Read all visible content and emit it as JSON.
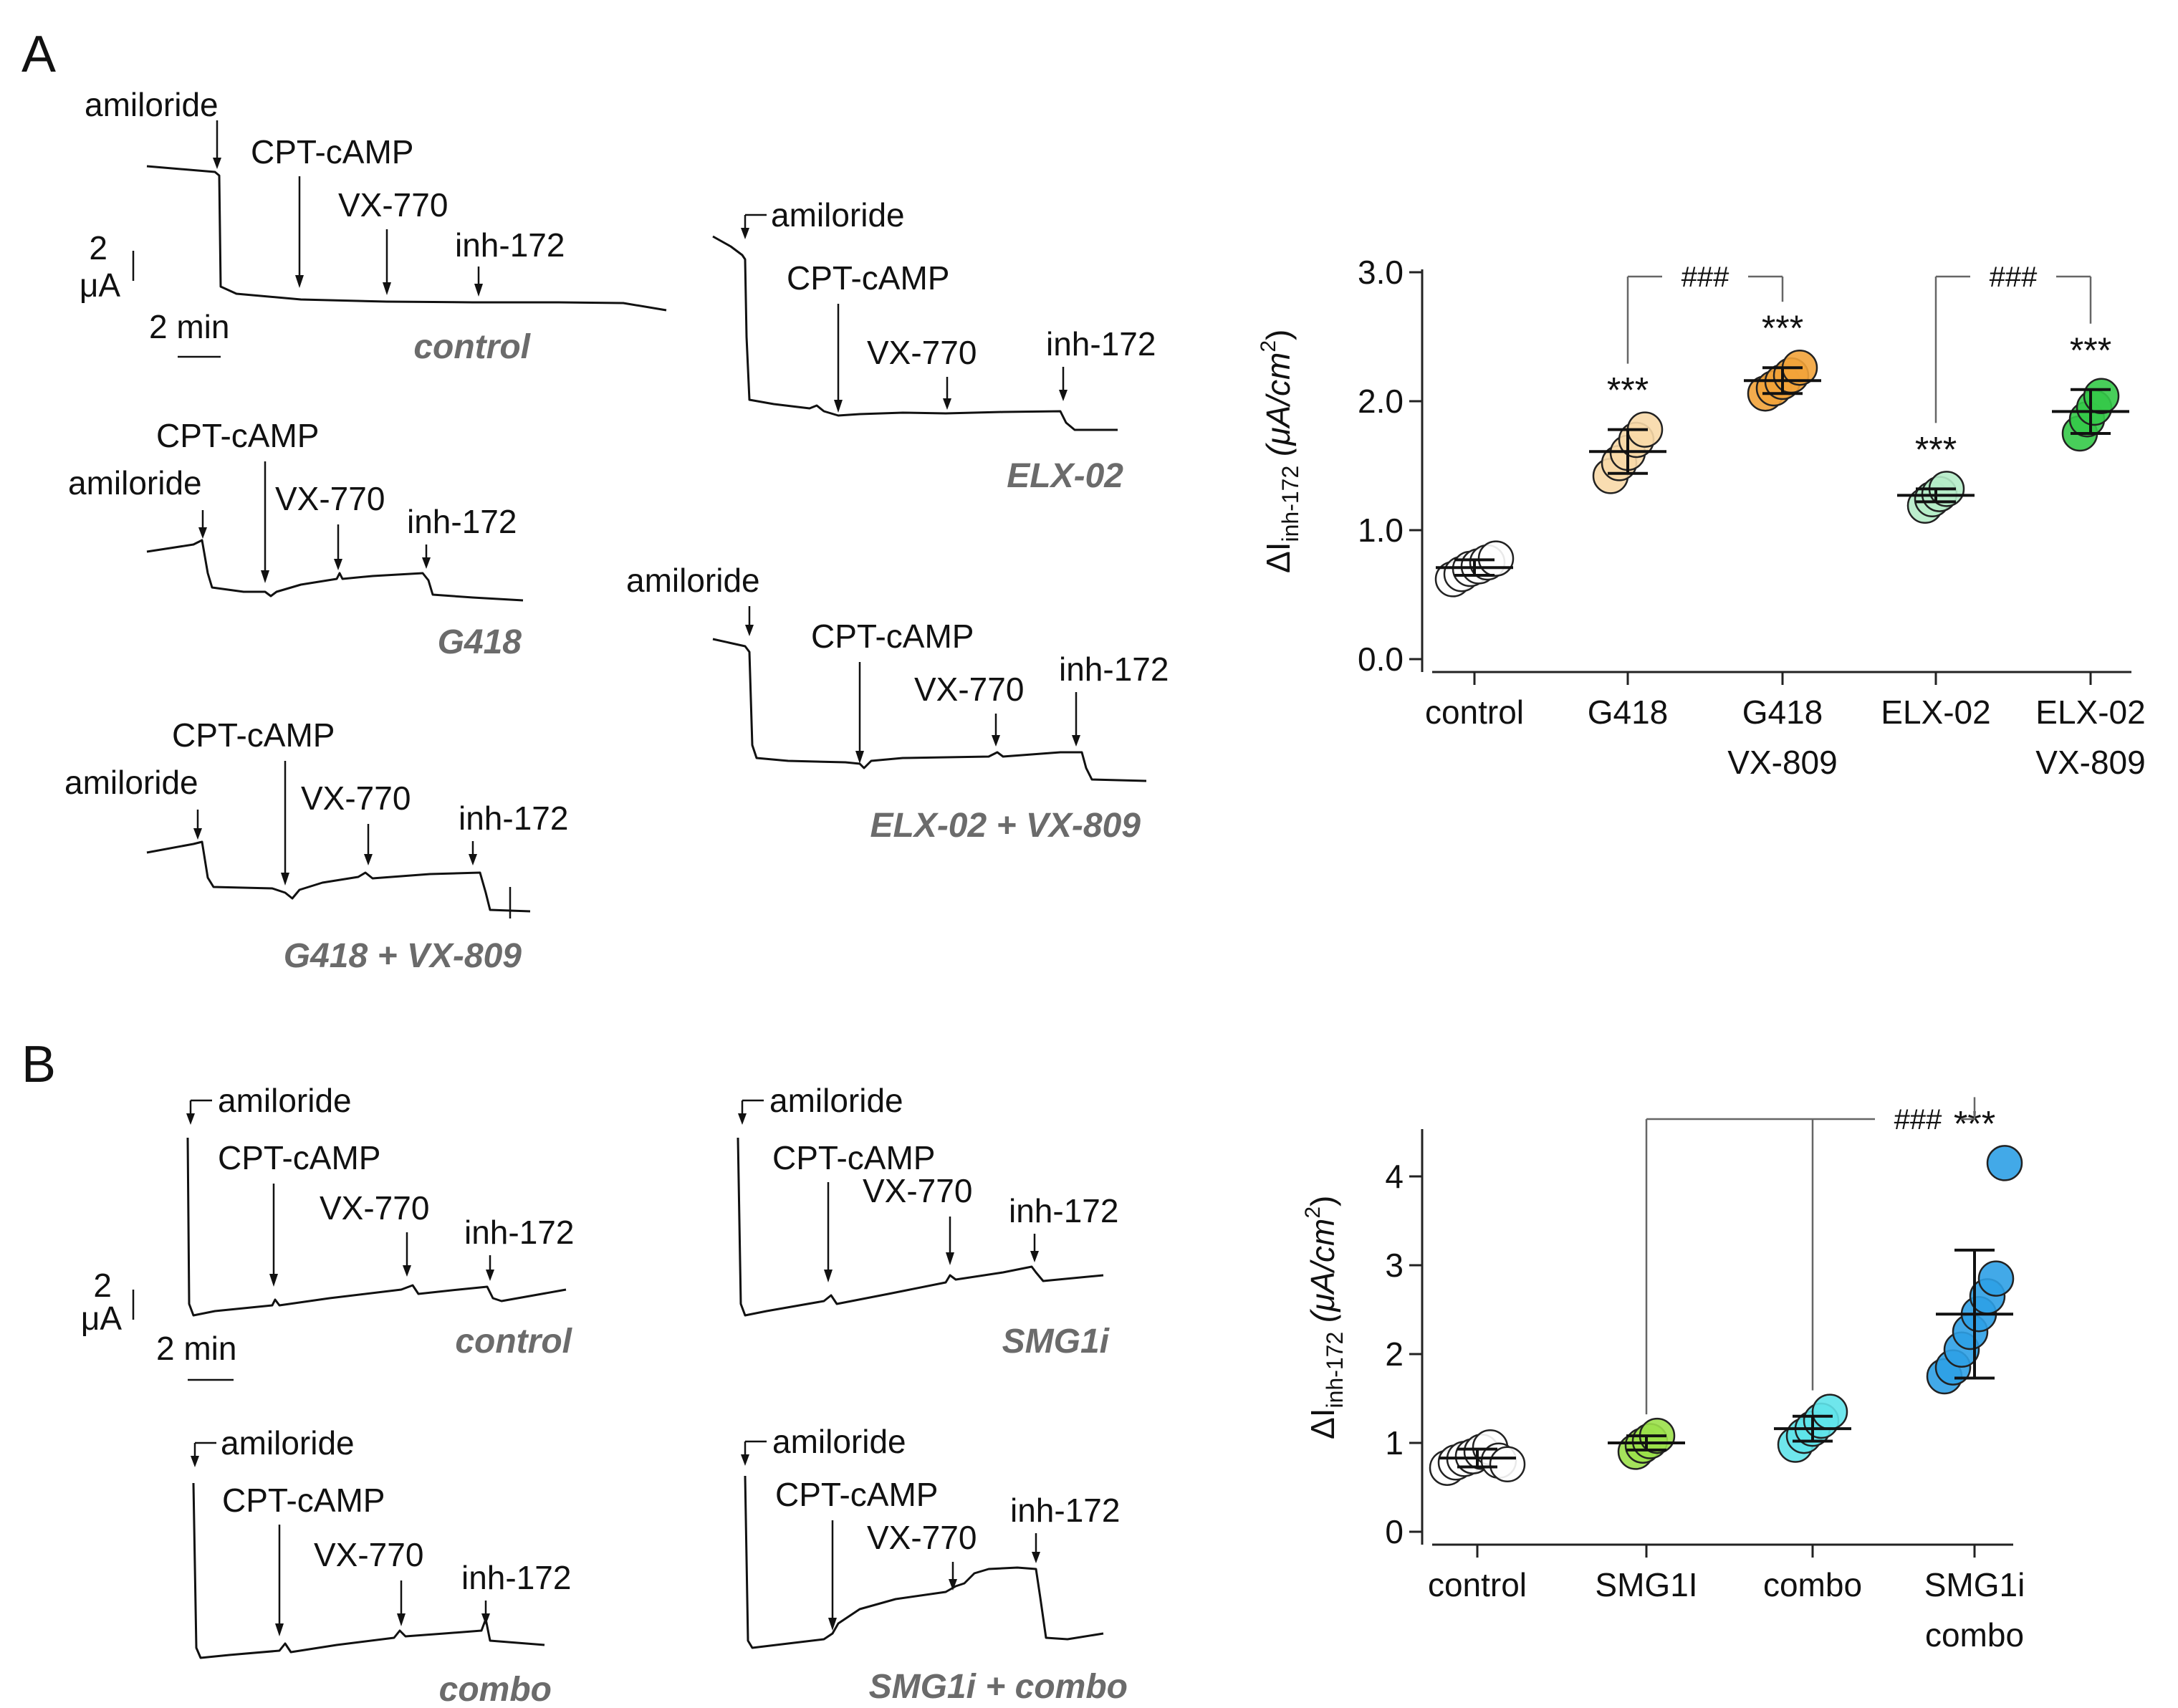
{
  "panels": {
    "A": {
      "letter": "A"
    },
    "B": {
      "letter": "B"
    }
  },
  "traces_A": [
    {
      "condition": "control",
      "arrows": [
        "amiloride",
        "CPT-cAMP",
        "VX-770",
        "inh-172"
      ]
    },
    {
      "condition": "G418",
      "arrows": [
        "amiloride",
        "CPT-cAMP",
        "VX-770",
        "inh-172"
      ]
    },
    {
      "condition": "G418 + VX-809",
      "arrows": [
        "amiloride",
        "CPT-cAMP",
        "VX-770",
        "inh-172"
      ]
    },
    {
      "condition": "ELX-02",
      "arrows": [
        "amiloride",
        "CPT-cAMP",
        "VX-770",
        "inh-172"
      ]
    },
    {
      "condition": "ELX-02 + VX-809",
      "arrows": [
        "amiloride",
        "CPT-cAMP",
        "VX-770",
        "inh-172"
      ]
    }
  ],
  "traces_B": [
    {
      "condition": "control",
      "arrows": [
        "amiloride",
        "CPT-cAMP",
        "VX-770",
        "inh-172"
      ]
    },
    {
      "condition": "SMG1i",
      "arrows": [
        "amiloride",
        "CPT-cAMP",
        "VX-770",
        "inh-172"
      ]
    },
    {
      "condition": "combo",
      "arrows": [
        "amiloride",
        "CPT-cAMP",
        "VX-770",
        "inh-172"
      ]
    },
    {
      "condition": "SMG1i + combo",
      "arrows": [
        "amiloride",
        "CPT-cAMP",
        "VX-770",
        "inh-172"
      ]
    }
  ],
  "scale_bars": {
    "A": {
      "current_value": "2",
      "current_unit": "μA",
      "time": "2 min"
    },
    "B": {
      "current_value": "2",
      "current_unit": "μA",
      "time": "2 min"
    }
  },
  "chart_data": [
    {
      "type": "scatter",
      "panel": "A",
      "ylabel_main": "ΔI",
      "ylabel_sub": "inh-172",
      "ylabel_units": "(μA/cm",
      "ylabel_sup": "2",
      "ylabel_close": ")",
      "ylim": [
        0,
        3.0
      ],
      "yticks": [
        "0.0",
        "1.0",
        "2.0",
        "3.0"
      ],
      "categories": [
        {
          "label": "control",
          "label2": "",
          "color": "#ffffff",
          "mean": 0.71,
          "sd": 0.06,
          "points": [
            0.62,
            0.66,
            0.7,
            0.72,
            0.75,
            0.78
          ],
          "stars": ""
        },
        {
          "label": "G418",
          "label2": "",
          "color": "#f8d9a8",
          "mean": 1.61,
          "sd": 0.17,
          "points": [
            1.42,
            1.52,
            1.6,
            1.7,
            1.78
          ],
          "stars": "***"
        },
        {
          "label": "G418",
          "label2": "VX-809",
          "color": "#f2a33a",
          "mean": 2.16,
          "sd": 0.1,
          "points": [
            2.06,
            2.1,
            2.15,
            2.2,
            2.26
          ],
          "stars": "***"
        },
        {
          "label": "ELX-02",
          "label2": "",
          "color": "#b5ecc8",
          "mean": 1.27,
          "sd": 0.05,
          "points": [
            1.19,
            1.24,
            1.28,
            1.32
          ],
          "stars": "***"
        },
        {
          "label": "ELX-02",
          "label2": "VX-809",
          "color": "#34c948",
          "mean": 1.92,
          "sd": 0.17,
          "points": [
            1.75,
            1.86,
            1.95,
            2.04
          ],
          "stars": "***"
        }
      ],
      "comparisons": [
        {
          "from": 1,
          "to": 2,
          "label": "###"
        },
        {
          "from": 3,
          "to": 4,
          "label": "###"
        }
      ]
    },
    {
      "type": "scatter",
      "panel": "B",
      "ylabel_main": "ΔI",
      "ylabel_sub": "inh-172",
      "ylabel_units": "(μA/cm",
      "ylabel_sup": "2",
      "ylabel_close": ")",
      "ylim": [
        0,
        4.5
      ],
      "yticks": [
        "0",
        "1",
        "2",
        "3",
        "4"
      ],
      "categories": [
        {
          "label": "control",
          "label2": "",
          "color": "#ffffff",
          "mean": 0.83,
          "sd": 0.1,
          "points": [
            0.72,
            0.78,
            0.82,
            0.85,
            0.9,
            0.95,
            0.8,
            0.76
          ],
          "stars": ""
        },
        {
          "label": "SMG1I",
          "label2": "",
          "color": "#9be04a",
          "mean": 1.0,
          "sd": 0.08,
          "points": [
            0.9,
            0.97,
            1.02,
            1.08
          ],
          "stars": ""
        },
        {
          "label": "combo",
          "label2": "",
          "color": "#5fe3ea",
          "mean": 1.16,
          "sd": 0.14,
          "points": [
            0.98,
            1.08,
            1.16,
            1.25,
            1.35
          ],
          "stars": ""
        },
        {
          "label": "SMG1i",
          "label2": "combo",
          "color": "#2ea0e6",
          "mean": 2.45,
          "sd": 0.72,
          "points": [
            1.75,
            1.85,
            2.05,
            2.25,
            2.45,
            2.65,
            2.85,
            4.15
          ],
          "stars": "***"
        }
      ],
      "comparisons": [
        {
          "from": [
            1,
            2
          ],
          "to": 3,
          "label": "###"
        }
      ]
    }
  ]
}
